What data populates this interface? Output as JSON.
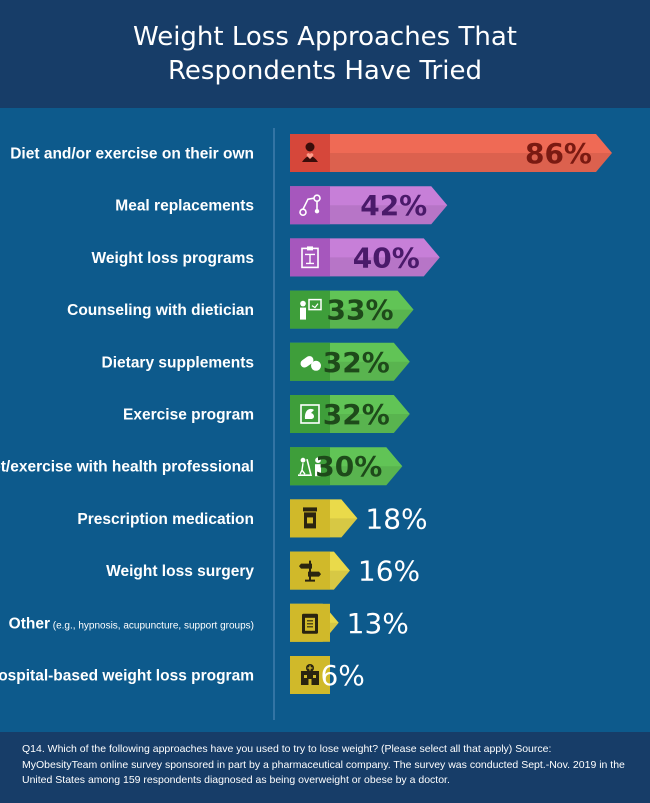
{
  "header": {
    "title_line1": "Weight Loss Approaches That",
    "title_line2": "Respondents Have Tried"
  },
  "chart_data": {
    "type": "bar",
    "orientation": "horizontal",
    "unit": "%",
    "xlim": [
      0,
      100
    ],
    "categories": [
      "Diet and/or exercise on their own",
      "Meal replacements",
      "Weight loss programs",
      "Counseling with dietician",
      "Dietary supplements",
      "Exercise program",
      "Diet/exercise with health professional",
      "Prescription medication",
      "Weight loss surgery",
      "Other",
      "Hospital-based weight loss program"
    ],
    "category_notes": [
      "",
      "",
      "",
      "",
      "",
      "",
      "",
      "",
      "",
      "(e.g., hypnosis, acupuncture, support groups)",
      ""
    ],
    "values": [
      86,
      42,
      40,
      33,
      32,
      32,
      30,
      18,
      16,
      13,
      6
    ],
    "value_labels": [
      "86%",
      "42%",
      "40%",
      "33%",
      "32%",
      "32%",
      "30%",
      "18%",
      "16%",
      "13%",
      "6%"
    ],
    "icons": [
      "person-heart-icon",
      "route-map-icon",
      "scale-clipboard-icon",
      "counselor-board-icon",
      "pill-icon",
      "flexed-arm-icon",
      "treadmill-doctor-icon",
      "pill-bottle-icon",
      "signpost-icon",
      "clipboard-icon",
      "hospital-icon"
    ],
    "bar_colors": [
      "#ef6a55",
      "#c77fd8",
      "#c77fd8",
      "#61c456",
      "#61c456",
      "#61c456",
      "#61c456",
      "#eada4a",
      "#eada4a",
      "#eada4a",
      "#eada4a"
    ],
    "icon_box_colors": [
      "#d6473a",
      "#a657bd",
      "#a657bd",
      "#3e9e3a",
      "#3e9e3a",
      "#3e9e3a",
      "#3e9e3a",
      "#d0b92a",
      "#d0b92a",
      "#d0b92a",
      "#d0b92a"
    ],
    "label_colors": [
      "#7a1a12",
      "#4a1a6a",
      "#4a1a6a",
      "#1e4a1a",
      "#1e4a1a",
      "#1e4a1a",
      "#1e4a1a",
      "#ffffff",
      "#ffffff",
      "#ffffff",
      "#ffffff"
    ]
  },
  "footer": {
    "note": "Q14. Which of the following approaches have you used to try to lose weight? (Please select all that apply) Source: MyObesityTeam online survey sponsored in part by a pharmaceutical company. The survey was conducted Sept.-Nov. 2019 in the United States among 159 respondents diagnosed as being overweight or obese by a doctor."
  }
}
